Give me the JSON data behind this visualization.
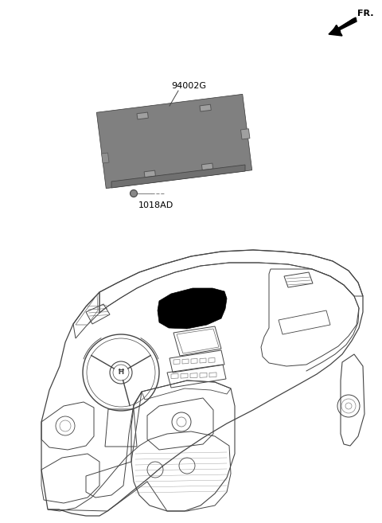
{
  "bg_color": "#ffffff",
  "label_94002G": "94002G",
  "label_1018AD": "1018AD",
  "label_FR": "FR.",
  "font_color": "#000000",
  "gray_body": "#b8b8b8",
  "gray_dark": "#909090",
  "gray_mid": "#a0a0a0",
  "dark_fill": "#000000",
  "line_color": "#444444",
  "line_thin": "#666666"
}
